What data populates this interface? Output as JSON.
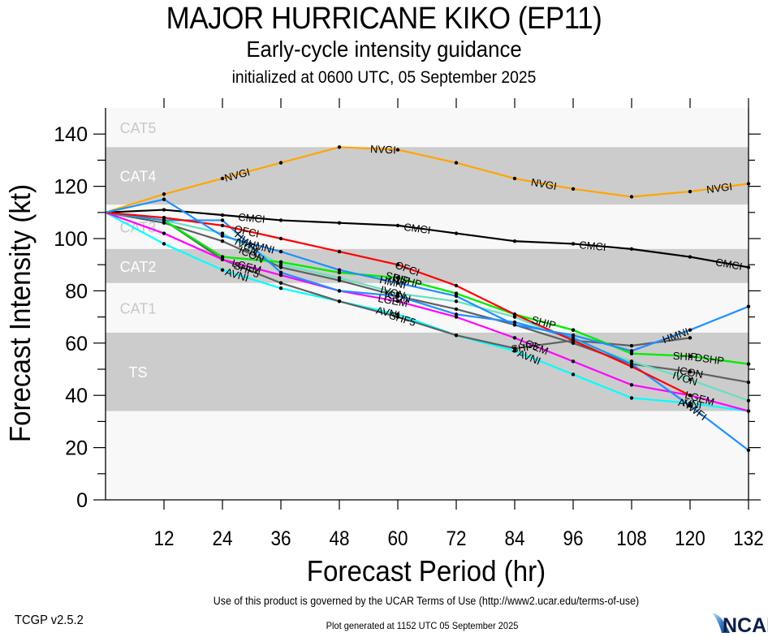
{
  "header": {
    "title": "MAJOR HURRICANE KIKO (EP11)",
    "subtitle": "Early-cycle intensity guidance",
    "initialized": "initialized at 0600 UTC, 05 September 2025"
  },
  "footer": {
    "terms": "Use of this product is governed by the UCAR Terms of Use (http://www2.ucar.edu/terms-of-use)",
    "generated": "Plot generated at 1152 UTC   05 September 2025",
    "version": "TCGP v2.5.2",
    "logo_text": "NCAR"
  },
  "chart_data": {
    "type": "line",
    "title": "MAJOR HURRICANE KIKO (EP11)",
    "xlabel": "Forecast Period (hr)",
    "ylabel": "Forecast Intensity (kt)",
    "xlim": [
      0,
      132
    ],
    "ylim": [
      0,
      150
    ],
    "xticks": [
      12,
      24,
      36,
      48,
      60,
      72,
      84,
      96,
      108,
      120,
      132
    ],
    "yticks": [
      0,
      20,
      40,
      60,
      80,
      100,
      120,
      140
    ],
    "legend": "inline-labels",
    "bands": [
      {
        "label": "TS",
        "from": 34,
        "to": 64,
        "shade": "dark"
      },
      {
        "label": "CAT1",
        "from": 64,
        "to": 83,
        "shade": "light"
      },
      {
        "label": "CAT2",
        "from": 83,
        "to": 96,
        "shade": "dark"
      },
      {
        "label": "CAT3",
        "from": 96,
        "to": 113,
        "shade": "light"
      },
      {
        "label": "CAT4",
        "from": 113,
        "to": 135,
        "shade": "dark"
      },
      {
        "label": "CAT5",
        "from": 135,
        "to": 150,
        "shade": "light"
      }
    ],
    "x": [
      0,
      12,
      24,
      36,
      48,
      60,
      72,
      84,
      96,
      108,
      120,
      132
    ],
    "series": [
      {
        "name": "NVGI",
        "color": "#ffa500",
        "values": [
          110,
          117,
          123,
          129,
          135,
          134,
          129,
          123,
          119,
          116,
          118,
          121
        ],
        "label_hours": [
          27,
          57,
          90,
          126
        ]
      },
      {
        "name": "CMCI",
        "color": "#000000",
        "values": [
          110,
          111,
          109,
          107,
          106,
          105,
          102,
          99,
          98,
          96,
          93,
          89
        ],
        "label_hours": [
          30,
          64,
          100,
          128
        ]
      },
      {
        "name": "OFCI",
        "color": "#ff0000",
        "values": [
          110,
          108,
          105,
          100,
          95,
          90,
          82,
          71,
          61,
          51,
          40,
          null
        ],
        "label_hours": [
          29,
          62
        ]
      },
      {
        "name": "HMNI",
        "color": "#1e90ff",
        "values": [
          110,
          115,
          101,
          95,
          88,
          83,
          78,
          67,
          63,
          57,
          65,
          74
        ],
        "label_hours": [
          32,
          59,
          117
        ]
      },
      {
        "name": "HWFI",
        "color": "#1e90ff",
        "values": [
          110,
          107,
          107,
          87,
          80,
          78,
          71,
          68,
          62,
          52,
          36,
          19
        ],
        "label_hours": [
          29,
          121
        ]
      },
      {
        "name": "DSHP",
        "color": "#00ee00",
        "values": [
          110,
          107,
          93,
          91,
          87,
          85,
          79,
          71,
          65,
          56,
          55,
          52
        ],
        "label_hours": [
          62,
          124
        ]
      },
      {
        "name": "SHIP",
        "color": "#00ee00",
        "values": [
          110,
          107,
          93,
          91,
          87,
          85,
          79,
          71,
          65,
          56,
          55,
          52
        ],
        "label_hours": [
          60,
          90,
          119
        ]
      },
      {
        "name": "IVCN",
        "color": "#66e0c0",
        "values": [
          110,
          107,
          102,
          90,
          85,
          79,
          76,
          70,
          61,
          53,
          46,
          38
        ],
        "label_hours": [
          29,
          59,
          119
        ]
      },
      {
        "name": "ICON",
        "color": "#606060",
        "values": [
          110,
          106,
          99,
          89,
          84,
          78,
          73,
          67,
          60,
          52,
          49,
          45
        ],
        "label_hours": [
          30,
          60,
          120
        ]
      },
      {
        "name": "LGEM",
        "color": "#ff00ff",
        "values": [
          110,
          102,
          92,
          86,
          80,
          76,
          70,
          62,
          53,
          44,
          40,
          34
        ],
        "label_hours": [
          29,
          59,
          88,
          122
        ]
      },
      {
        "name": "SHF5",
        "color": "#606060",
        "values": [
          110,
          107,
          92,
          83,
          76,
          70,
          63,
          58,
          61,
          59,
          62,
          null
        ],
        "label_hours": [
          29,
          61,
          86
        ]
      },
      {
        "name": "AVNI",
        "color": "#00ffff",
        "values": [
          110,
          98,
          88,
          81,
          76,
          71,
          63,
          57,
          48,
          39,
          37,
          34
        ],
        "label_hours": [
          27,
          58,
          87,
          120
        ]
      }
    ]
  }
}
